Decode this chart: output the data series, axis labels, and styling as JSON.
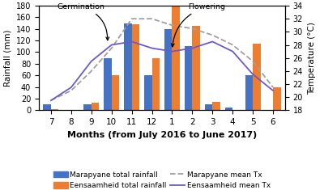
{
  "months": [
    "7",
    "8",
    "9",
    "10",
    "11",
    "12",
    "1",
    "2",
    "3",
    "4",
    "5",
    "6"
  ],
  "marapyane_rainfall": [
    10,
    0,
    10,
    90,
    150,
    60,
    140,
    110,
    10,
    5,
    60,
    0
  ],
  "eensaamheid_rainfall": [
    2,
    0,
    13,
    60,
    148,
    90,
    180,
    145,
    15,
    0,
    115,
    40
  ],
  "marapyane_tx": [
    19.5,
    21.0,
    24.0,
    27.5,
    32.0,
    32.0,
    31.0,
    30.5,
    29.5,
    28.0,
    25.5,
    21.5
  ],
  "eensaamheid_tx": [
    19.5,
    21.5,
    25.5,
    28.0,
    28.5,
    27.5,
    27.0,
    27.5,
    28.5,
    27.0,
    23.5,
    21.0
  ],
  "bar_color_marapyane": "#4472C4",
  "bar_color_eensaamheid": "#ED7D31",
  "line_color_marapyane": "#A0A0A0",
  "line_color_eensaamheid": "#6A5ACD",
  "xlabel": "Months (from July 2016 to June 2017)",
  "ylabel_left": "Rainfall (mm)",
  "ylabel_right": "Temperature (°C)",
  "ylim_left": [
    0,
    180
  ],
  "ylim_right": [
    18,
    34
  ],
  "yticks_left": [
    0,
    20,
    40,
    60,
    80,
    100,
    120,
    140,
    160,
    180
  ],
  "yticks_right": [
    18,
    20,
    22,
    24,
    26,
    28,
    30,
    32,
    34
  ],
  "legend_labels": [
    "Marapyane total rainfall",
    "Eensaamheid total rainfall",
    "Marapyane mean Tx",
    "Eensaamheid mean Tx"
  ]
}
